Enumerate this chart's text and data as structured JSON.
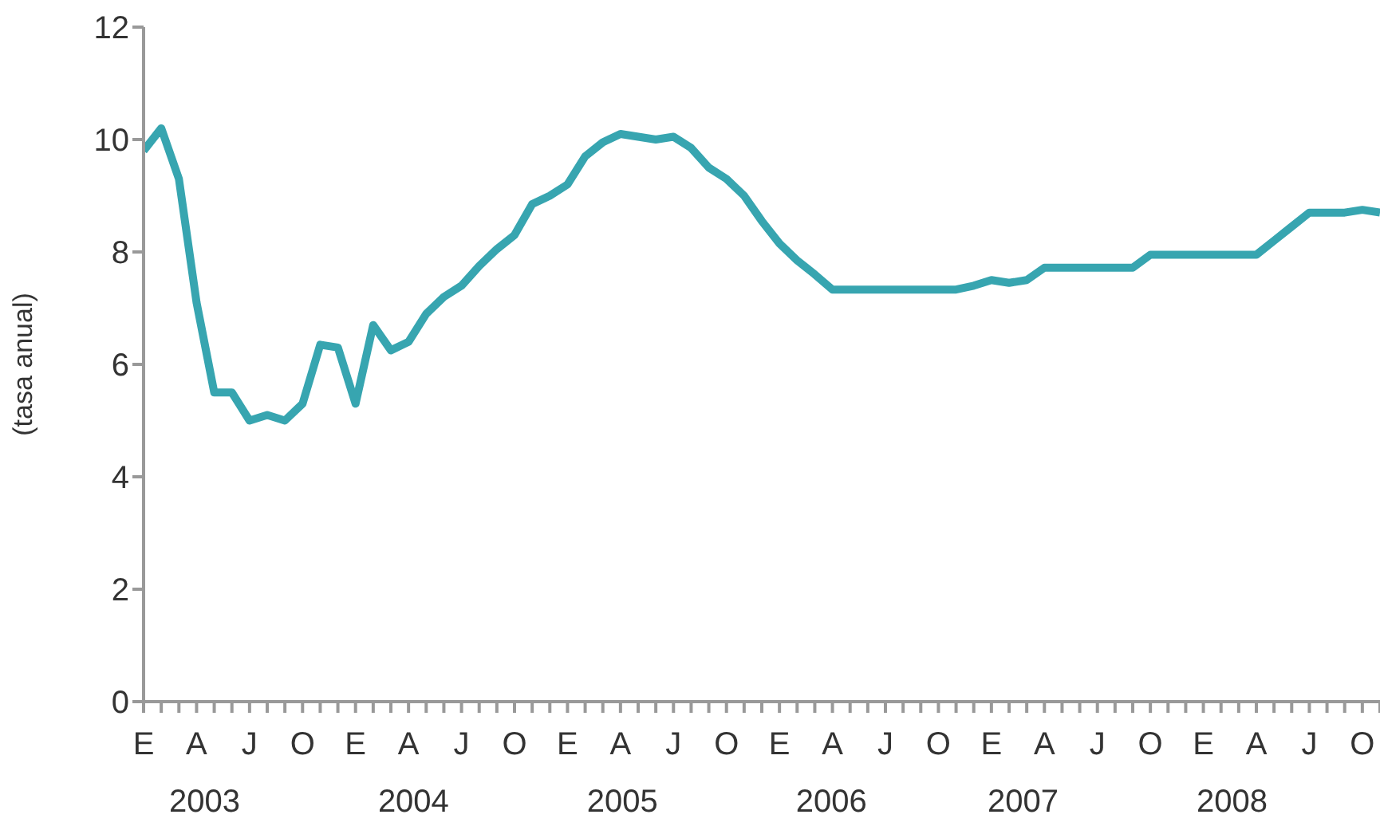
{
  "chart_data": {
    "type": "line",
    "ylabel": "(tasa anual)",
    "categories": [
      "E",
      null,
      null,
      "A",
      null,
      null,
      "J",
      null,
      null,
      "O",
      null,
      null,
      "E",
      null,
      null,
      "A",
      null,
      null,
      "J",
      null,
      null,
      "O",
      null,
      null,
      "E",
      null,
      null,
      "A",
      null,
      null,
      "J",
      null,
      null,
      "O",
      null,
      null,
      "E",
      null,
      null,
      "A",
      null,
      null,
      "J",
      null,
      null,
      "O",
      null,
      null,
      "E",
      null,
      null,
      "A",
      null,
      null,
      "J",
      null,
      null,
      "O",
      null,
      null,
      "E",
      null,
      null,
      "A",
      null,
      null,
      "J",
      null,
      null,
      "O",
      null
    ],
    "series": [
      {
        "color": "#37a5b0",
        "values": [
          9.8,
          10.2,
          9.3,
          7.1,
          5.5,
          5.5,
          5.0,
          5.1,
          5.0,
          5.3,
          6.35,
          6.3,
          5.3,
          6.7,
          6.25,
          6.4,
          6.9,
          7.2,
          7.4,
          7.75,
          8.05,
          8.3,
          8.85,
          9.0,
          9.2,
          9.7,
          9.95,
          10.1,
          10.05,
          10.0,
          10.05,
          9.85,
          9.5,
          9.3,
          9.0,
          8.55,
          8.15,
          7.85,
          7.6,
          7.33,
          7.33,
          7.33,
          7.33,
          7.33,
          7.33,
          7.33,
          7.33,
          7.4,
          7.5,
          7.45,
          7.5,
          7.72,
          7.72,
          7.72,
          7.72,
          7.72,
          7.72,
          7.95,
          7.95,
          7.95,
          7.95,
          7.95,
          7.95,
          7.95,
          8.2,
          8.45,
          8.7,
          8.7,
          8.7,
          8.75,
          8.7
        ]
      }
    ],
    "ylim": [
      0,
      12
    ],
    "yticks": [
      0,
      2,
      4,
      6,
      8,
      10,
      12
    ],
    "annotations": [
      "2003",
      "2004",
      "2005",
      "2006",
      "2007",
      "2008"
    ],
    "marker": "none",
    "line_style": "solid"
  }
}
